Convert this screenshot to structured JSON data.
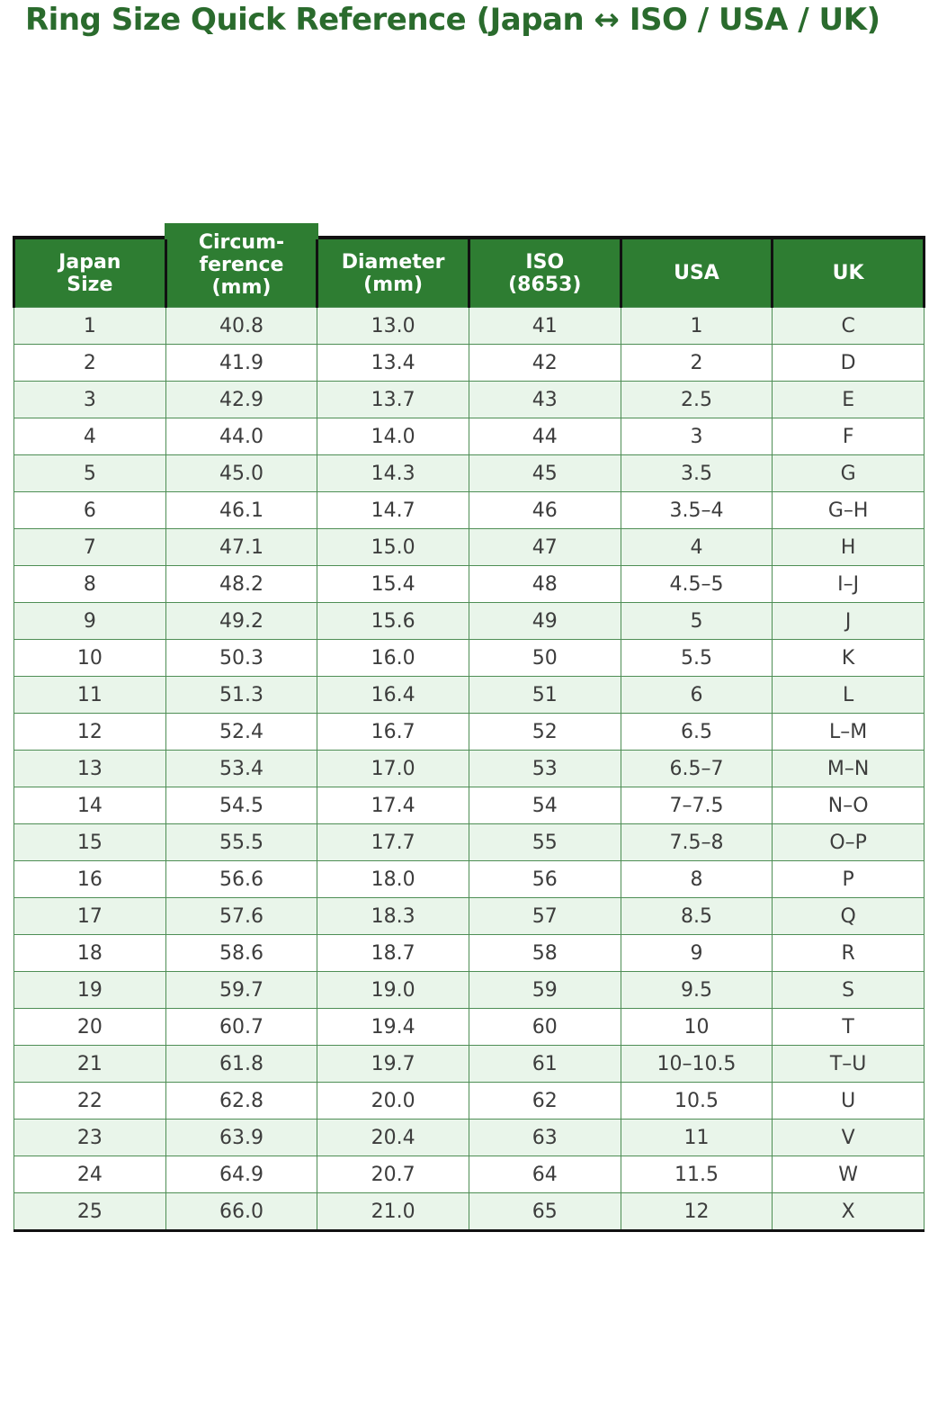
{
  "title": "Ring Size Quick Reference (Japan ↔ ISO / USA / UK)",
  "colors": {
    "title": "#2a6b2d",
    "header_bg": "#2e7d32",
    "header_text": "#ffffff",
    "row_alt_bg": "#e9f5ea",
    "row_bg": "#ffffff",
    "grid_green": "#4e8e55",
    "border_dark": "#111111",
    "cell_text": "#3d3d3d"
  },
  "chart_data": {
    "type": "table",
    "title": "Ring Size Quick Reference (Japan ↔ ISO / USA / UK)",
    "columns": [
      "Japan Size",
      "Circumference (mm)",
      "Diameter (mm)",
      "ISO (8653)",
      "USA",
      "UK"
    ],
    "header_display": [
      "Japan\nSize",
      "Circum-\nference\n(mm)",
      "Diameter\n(mm)",
      "ISO\n(8653)",
      "USA",
      "UK"
    ],
    "column_keys": [
      "japan-size",
      "circumference-mm",
      "diameter-mm",
      "iso-8653",
      "usa",
      "uk"
    ],
    "rows": [
      [
        "1",
        "40.8",
        "13.0",
        "41",
        "1",
        "C"
      ],
      [
        "2",
        "41.9",
        "13.4",
        "42",
        "2",
        "D"
      ],
      [
        "3",
        "42.9",
        "13.7",
        "43",
        "2.5",
        "E"
      ],
      [
        "4",
        "44.0",
        "14.0",
        "44",
        "3",
        "F"
      ],
      [
        "5",
        "45.0",
        "14.3",
        "45",
        "3.5",
        "G"
      ],
      [
        "6",
        "46.1",
        "14.7",
        "46",
        "3.5–4",
        "G–H"
      ],
      [
        "7",
        "47.1",
        "15.0",
        "47",
        "4",
        "H"
      ],
      [
        "8",
        "48.2",
        "15.4",
        "48",
        "4.5–5",
        "I–J"
      ],
      [
        "9",
        "49.2",
        "15.6",
        "49",
        "5",
        "J"
      ],
      [
        "10",
        "50.3",
        "16.0",
        "50",
        "5.5",
        "K"
      ],
      [
        "11",
        "51.3",
        "16.4",
        "51",
        "6",
        "L"
      ],
      [
        "12",
        "52.4",
        "16.7",
        "52",
        "6.5",
        "L–M"
      ],
      [
        "13",
        "53.4",
        "17.0",
        "53",
        "6.5–7",
        "M–N"
      ],
      [
        "14",
        "54.5",
        "17.4",
        "54",
        "7–7.5",
        "N–O"
      ],
      [
        "15",
        "55.5",
        "17.7",
        "55",
        "7.5–8",
        "O–P"
      ],
      [
        "16",
        "56.6",
        "18.0",
        "56",
        "8",
        "P"
      ],
      [
        "17",
        "57.6",
        "18.3",
        "57",
        "8.5",
        "Q"
      ],
      [
        "18",
        "58.6",
        "18.7",
        "58",
        "9",
        "R"
      ],
      [
        "19",
        "59.7",
        "19.0",
        "59",
        "9.5",
        "S"
      ],
      [
        "20",
        "60.7",
        "19.4",
        "60",
        "10",
        "T"
      ],
      [
        "21",
        "61.8",
        "19.7",
        "61",
        "10–10.5",
        "T–U"
      ],
      [
        "22",
        "62.8",
        "20.0",
        "62",
        "10.5",
        "U"
      ],
      [
        "23",
        "63.9",
        "20.4",
        "63",
        "11",
        "V"
      ],
      [
        "24",
        "64.9",
        "20.7",
        "64",
        "11.5",
        "W"
      ],
      [
        "25",
        "66.0",
        "21.0",
        "65",
        "12",
        "X"
      ]
    ]
  }
}
